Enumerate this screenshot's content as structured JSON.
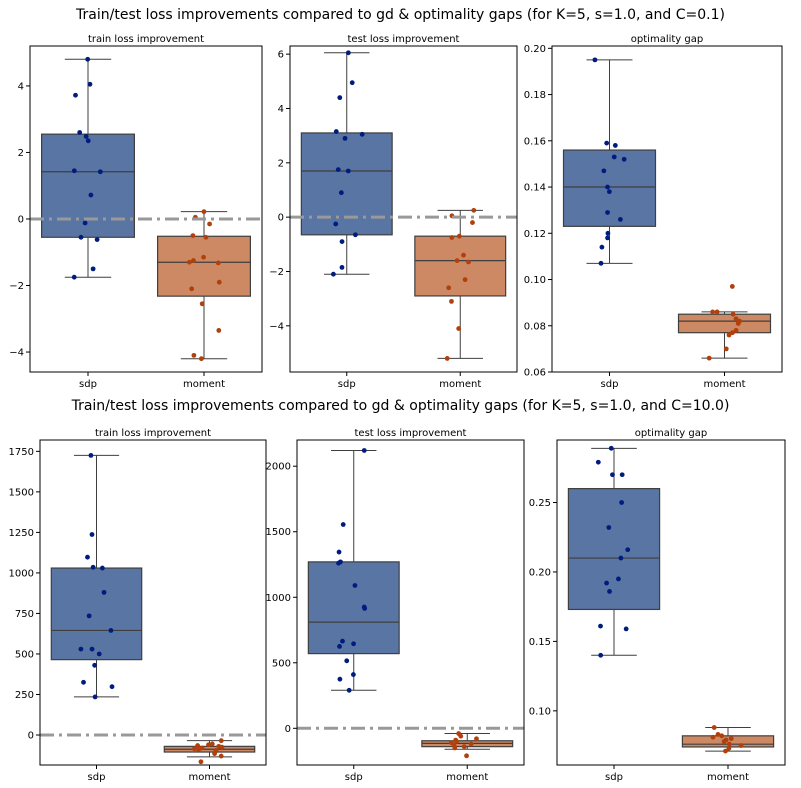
{
  "colors": {
    "sdp_box": "#5875a4",
    "sdp_point": "#001c7f",
    "moment_box": "#cc8963",
    "moment_point": "#b1400d",
    "zero_line": "#999999",
    "edge": "#3f3f3f"
  },
  "chart_data": [
    {
      "figure_title": "Train/test loss improvements compared to gd & optimality gaps (for K=5, s=1.0, and C=0.1)",
      "panels": [
        {
          "type": "box",
          "title": "train loss improvement",
          "categories": [
            "sdp",
            "moment"
          ],
          "ylim": [
            -4.6,
            5.2
          ],
          "yticks": [
            -4,
            -2,
            0,
            2,
            4
          ],
          "ytick_labels": [
            "−4",
            "−2",
            "0",
            "2",
            "4"
          ],
          "zero_line": true,
          "groups": [
            {
              "name": "sdp",
              "whislo": -1.75,
              "q1": -0.55,
              "med": 1.42,
              "q3": 2.55,
              "whishi": 4.8,
              "points": [
                4.8,
                4.05,
                3.72,
                2.6,
                2.48,
                2.35,
                1.45,
                1.42,
                0.72,
                -0.12,
                -0.55,
                -0.62,
                -1.5,
                -1.75
              ]
            },
            {
              "name": "moment",
              "whislo": -4.2,
              "q1": -2.32,
              "med": -1.3,
              "q3": -0.52,
              "whishi": 0.22,
              "points": [
                0.22,
                0.05,
                -0.15,
                -0.5,
                -0.55,
                -1.15,
                -1.25,
                -1.3,
                -1.32,
                -1.9,
                -2.1,
                -2.55,
                -3.35,
                -4.1,
                -4.2
              ]
            }
          ]
        },
        {
          "type": "box",
          "title": "test loss improvement",
          "categories": [
            "sdp",
            "moment"
          ],
          "ylim": [
            -5.7,
            6.3
          ],
          "yticks": [
            -4,
            -2,
            0,
            2,
            4,
            6
          ],
          "ytick_labels": [
            "−4",
            "−2",
            "0",
            "2",
            "4",
            "6"
          ],
          "zero_line": true,
          "groups": [
            {
              "name": "sdp",
              "whislo": -2.1,
              "q1": -0.65,
              "med": 1.7,
              "q3": 3.1,
              "whishi": 6.05,
              "points": [
                6.05,
                4.95,
                4.4,
                3.15,
                3.05,
                2.9,
                1.75,
                1.7,
                0.9,
                -0.25,
                -0.65,
                -0.9,
                -1.85,
                -2.1
              ]
            },
            {
              "name": "moment",
              "whislo": -5.2,
              "q1": -2.9,
              "med": -1.6,
              "q3": -0.7,
              "whishi": 0.25,
              "points": [
                0.25,
                0.05,
                -0.2,
                -0.7,
                -0.75,
                -1.4,
                -1.6,
                -1.65,
                -2.3,
                -2.6,
                -3.1,
                -4.1,
                -5.2
              ]
            }
          ]
        },
        {
          "type": "box",
          "title": "optimality gap",
          "categories": [
            "sdp",
            "moment"
          ],
          "ylim": [
            0.06,
            0.201
          ],
          "yticks": [
            0.06,
            0.08,
            0.1,
            0.12,
            0.14,
            0.16,
            0.18,
            0.2
          ],
          "ytick_labels": [
            "0.06",
            "0.08",
            "0.10",
            "0.12",
            "0.14",
            "0.16",
            "0.18",
            "0.20"
          ],
          "zero_line": false,
          "groups": [
            {
              "name": "sdp",
              "whislo": 0.107,
              "q1": 0.123,
              "med": 0.14,
              "q3": 0.156,
              "whishi": 0.195,
              "points": [
                0.195,
                0.159,
                0.158,
                0.153,
                0.152,
                0.147,
                0.14,
                0.138,
                0.129,
                0.126,
                0.12,
                0.118,
                0.114,
                0.107
              ]
            },
            {
              "name": "moment",
              "whislo": 0.066,
              "q1": 0.077,
              "med": 0.082,
              "q3": 0.085,
              "whishi": 0.086,
              "points": [
                0.097,
                0.086,
                0.086,
                0.085,
                0.083,
                0.082,
                0.081,
                0.078,
                0.077,
                0.076,
                0.07,
                0.066
              ]
            }
          ]
        }
      ]
    },
    {
      "figure_title": "Train/test loss improvements compared to gd & optimality gaps (for K=5, s=1.0, and C=10.0)",
      "panels": [
        {
          "type": "box",
          "title": "train loss improvement",
          "categories": [
            "sdp",
            "moment"
          ],
          "ylim": [
            -185,
            1820
          ],
          "yticks": [
            0,
            250,
            500,
            750,
            1000,
            1250,
            1500,
            1750
          ],
          "ytick_labels": [
            "0",
            "250",
            "500",
            "750",
            "1000",
            "1250",
            "1500",
            "1750"
          ],
          "zero_line": true,
          "groups": [
            {
              "name": "sdp",
              "whislo": 235,
              "q1": 465,
              "med": 645,
              "q3": 1030,
              "whishi": 1725,
              "points": [
                1725,
                1237,
                1097,
                1035,
                1030,
                880,
                735,
                645,
                530,
                530,
                500,
                430,
                325,
                298,
                235
              ]
            },
            {
              "name": "moment",
              "whislo": -135,
              "q1": -105,
              "med": -88,
              "q3": -70,
              "whishi": -35,
              "points": [
                -35,
                -55,
                -60,
                -65,
                -70,
                -75,
                -80,
                -85,
                -90,
                -95,
                -100,
                -115,
                -130,
                -165
              ]
            }
          ]
        },
        {
          "type": "box",
          "title": "test loss improvement",
          "categories": [
            "sdp",
            "moment"
          ],
          "ylim": [
            -280,
            2200
          ],
          "yticks": [
            0,
            500,
            1000,
            1500,
            2000
          ],
          "ytick_labels": [
            "0",
            "500",
            "1000",
            "1500",
            "2000"
          ],
          "zero_line": true,
          "groups": [
            {
              "name": "sdp",
              "whislo": 290,
              "q1": 570,
              "med": 810,
              "q3": 1270,
              "whishi": 2120,
              "points": [
                2120,
                1555,
                1345,
                1270,
                1260,
                1090,
                925,
                915,
                665,
                645,
                625,
                515,
                410,
                375,
                290
              ]
            },
            {
              "name": "moment",
              "whislo": -160,
              "q1": -140,
              "med": -115,
              "q3": -95,
              "whishi": -40,
              "points": [
                -40,
                -60,
                -80,
                -90,
                -100,
                -110,
                -120,
                -130,
                -140,
                -150,
                -210
              ]
            }
          ]
        },
        {
          "type": "box",
          "title": "optimality gap",
          "categories": [
            "sdp",
            "moment"
          ],
          "ylim": [
            0.061,
            0.295
          ],
          "yticks": [
            0.1,
            0.15,
            0.2,
            0.25
          ],
          "ytick_labels": [
            "0.10",
            "0.15",
            "0.20",
            "0.25"
          ],
          "zero_line": false,
          "groups": [
            {
              "name": "sdp",
              "whislo": 0.14,
              "q1": 0.173,
              "med": 0.21,
              "q3": 0.26,
              "whishi": 0.289,
              "points": [
                0.289,
                0.279,
                0.27,
                0.27,
                0.25,
                0.232,
                0.216,
                0.21,
                0.195,
                0.192,
                0.186,
                0.161,
                0.159,
                0.14
              ]
            },
            {
              "name": "moment",
              "whislo": 0.071,
              "q1": 0.074,
              "med": 0.076,
              "q3": 0.082,
              "whishi": 0.088,
              "points": [
                0.088,
                0.083,
                0.082,
                0.081,
                0.08,
                0.079,
                0.078,
                0.076,
                0.075,
                0.073,
                0.071
              ]
            }
          ]
        }
      ]
    }
  ]
}
